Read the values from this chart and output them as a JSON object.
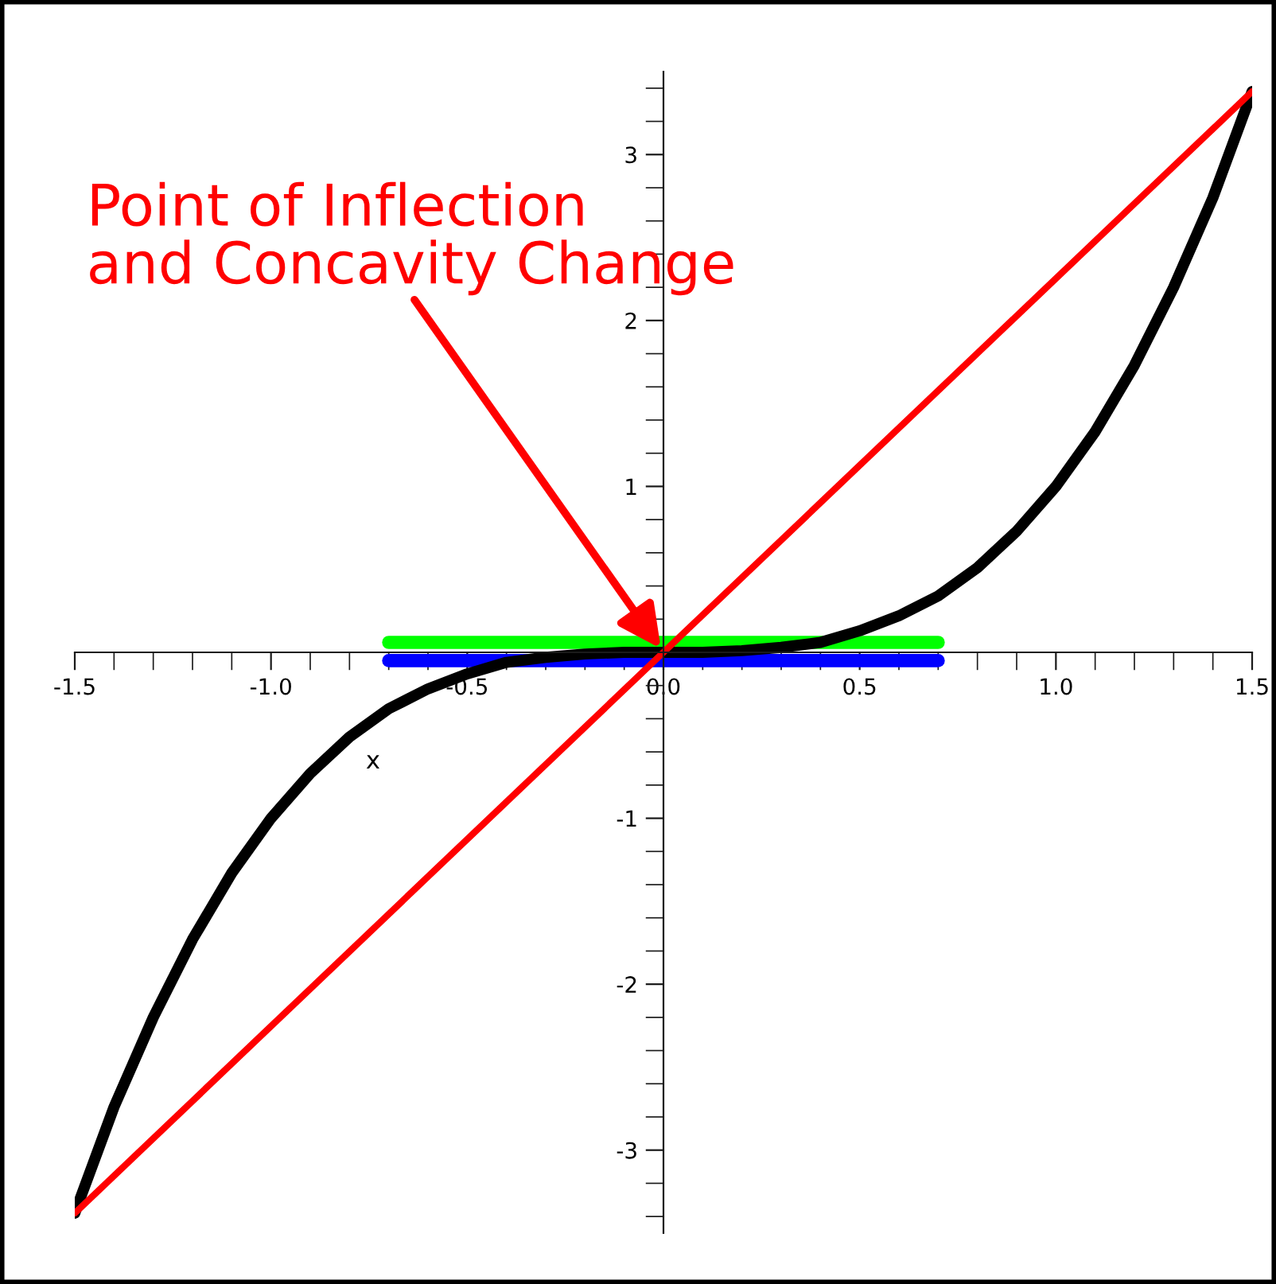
{
  "chart_data": {
    "type": "line",
    "xlabel": "x",
    "annotations": [
      {
        "text": "Point of Inflection\nand Concavity Change",
        "x": 0,
        "y": 0
      }
    ],
    "xlim": [
      -1.5,
      1.5
    ],
    "ylim": [
      -3.5,
      3.5
    ],
    "xticks": [
      {
        "value": -1.5,
        "label": "-1.5"
      },
      {
        "value": -1.4,
        "label": null
      },
      {
        "value": -1.3,
        "label": null
      },
      {
        "value": -1.2,
        "label": null
      },
      {
        "value": -1.1,
        "label": null
      },
      {
        "value": -1.0,
        "label": "-1.0"
      },
      {
        "value": -0.9,
        "label": null
      },
      {
        "value": -0.8,
        "label": null
      },
      {
        "value": -0.7,
        "label": null
      },
      {
        "value": -0.6,
        "label": null
      },
      {
        "value": -0.5,
        "label": "-0.5"
      },
      {
        "value": -0.4,
        "label": null
      },
      {
        "value": -0.3,
        "label": null
      },
      {
        "value": -0.2,
        "label": null
      },
      {
        "value": -0.1,
        "label": null
      },
      {
        "value": 0,
        "label": "0.0"
      },
      {
        "value": 0.1,
        "label": null
      },
      {
        "value": 0.2,
        "label": null
      },
      {
        "value": 0.3,
        "label": null
      },
      {
        "value": 0.4,
        "label": null
      },
      {
        "value": 0.5,
        "label": "0.5"
      },
      {
        "value": 0.6,
        "label": null
      },
      {
        "value": 0.7,
        "label": null
      },
      {
        "value": 0.8,
        "label": null
      },
      {
        "value": 0.9,
        "label": null
      },
      {
        "value": 1.0,
        "label": "1.0"
      },
      {
        "value": 1.1,
        "label": null
      },
      {
        "value": 1.2,
        "label": null
      },
      {
        "value": 1.3,
        "label": null
      },
      {
        "value": 1.4,
        "label": null
      },
      {
        "value": 1.5,
        "label": "1.5"
      }
    ],
    "yticks": [
      {
        "value": -3.4,
        "label": null
      },
      {
        "value": -3.2,
        "label": null
      },
      -3,
      {
        "value": -2.8,
        "label": null
      },
      {
        "value": -2.6,
        "label": null
      },
      {
        "value": -2.4,
        "label": null
      },
      {
        "value": -2.2,
        "label": null
      },
      -2,
      {
        "value": -1.8,
        "label": null
      },
      {
        "value": -1.6,
        "label": null
      },
      {
        "value": -1.4,
        "label": null
      },
      {
        "value": -1.2,
        "label": null
      },
      -1,
      {
        "value": -0.8,
        "label": null
      },
      {
        "value": -0.6,
        "label": null
      },
      {
        "value": -0.4,
        "label": null
      },
      {
        "value": -0.2,
        "label": null
      },
      {
        "value": 0.2,
        "label": null
      },
      {
        "value": 0.4,
        "label": null
      },
      {
        "value": 0.6,
        "label": null
      },
      {
        "value": 0.8,
        "label": null
      },
      1,
      {
        "value": 1.2,
        "label": null
      },
      {
        "value": 1.4,
        "label": null
      },
      {
        "value": 1.6,
        "label": null
      },
      {
        "value": 1.8,
        "label": null
      },
      2,
      {
        "value": 2.2,
        "label": null
      },
      {
        "value": 2.4,
        "label": null
      },
      {
        "value": 2.6,
        "label": null
      },
      {
        "value": 2.8,
        "label": null
      },
      3,
      {
        "value": 3.2,
        "label": null
      },
      {
        "value": 3.4,
        "label": null
      }
    ],
    "grid": false,
    "legend": false,
    "marker": "none",
    "line_style": "solid",
    "series": [
      {
        "color": "#00ff00",
        "x": [
          -0.7,
          0.7
        ],
        "values": [
          0.06,
          0.06
        ]
      },
      {
        "color": "#0000ff",
        "x": [
          -0.7,
          0.7
        ],
        "values": [
          -0.05,
          -0.05
        ]
      },
      {
        "color": "#000000",
        "x": [
          -1.5,
          -1.4,
          -1.3,
          -1.2,
          -1.1,
          -1.0,
          -0.9,
          -0.8,
          -0.7,
          -0.6,
          -0.5,
          -0.4,
          -0.3,
          -0.2,
          -0.1,
          0,
          0.1,
          0.2,
          0.3,
          0.4,
          0.5,
          0.6,
          0.7,
          0.8,
          0.9,
          1.0,
          1.1,
          1.2,
          1.3,
          1.4,
          1.5
        ],
        "values": [
          -3.38,
          -2.74,
          -2.2,
          -1.73,
          -1.33,
          -1.0,
          -0.73,
          -0.51,
          -0.34,
          -0.22,
          -0.13,
          -0.06,
          -0.03,
          -0.01,
          0,
          0,
          0,
          0.01,
          0.03,
          0.06,
          0.13,
          0.22,
          0.34,
          0.51,
          0.73,
          1.0,
          1.33,
          1.73,
          2.2,
          2.74,
          3.38
        ]
      },
      {
        "color": "#ff0000",
        "x": [
          -1.5,
          1.5
        ],
        "values": [
          -3.38,
          3.38
        ]
      }
    ]
  }
}
